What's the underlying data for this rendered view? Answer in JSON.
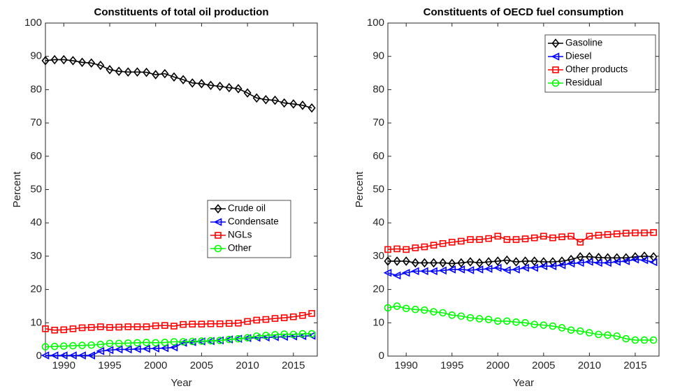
{
  "chart_data": [
    {
      "type": "line",
      "title": "Constituents of total oil production",
      "xlabel": "Year",
      "ylabel": "Percent",
      "x": [
        1988,
        1989,
        1990,
        1991,
        1992,
        1993,
        1994,
        1995,
        1996,
        1997,
        1998,
        1999,
        2000,
        2001,
        2002,
        2003,
        2004,
        2005,
        2006,
        2007,
        2008,
        2009,
        2010,
        2011,
        2012,
        2013,
        2014,
        2015,
        2016,
        2017
      ],
      "xlim": [
        1988,
        2017.6
      ],
      "xticks": [
        1990,
        1995,
        2000,
        2005,
        2010,
        2015
      ],
      "ylim": [
        0,
        100
      ],
      "yticks": [
        0,
        10,
        20,
        30,
        40,
        50,
        60,
        70,
        80,
        90,
        100
      ],
      "legend": "east",
      "series": [
        {
          "name": "Crude oil",
          "color": "#000000",
          "marker": "diamond",
          "values": [
            88.7,
            89,
            89,
            88.7,
            88.2,
            88,
            87.3,
            86,
            85.5,
            85.3,
            85.3,
            85.2,
            84.5,
            84.8,
            83.8,
            83,
            82,
            81.8,
            81.3,
            81,
            80.6,
            80.3,
            79,
            77.5,
            77,
            76.8,
            76,
            75.7,
            75.3,
            74.5
          ]
        },
        {
          "name": "Condensate",
          "color": "#0000ff",
          "marker": "triangle-left",
          "values": [
            0.2,
            0.2,
            0.2,
            0.2,
            0.2,
            0.2,
            1.5,
            1.8,
            2,
            2,
            2.1,
            2.2,
            2.3,
            2.4,
            2.6,
            4,
            4.2,
            4.4,
            4.5,
            4.7,
            5,
            5.2,
            5.4,
            5.5,
            5.6,
            5.7,
            5.8,
            5.9,
            6,
            6.1
          ]
        },
        {
          "name": "NGLs",
          "color": "#ff0000",
          "marker": "square",
          "values": [
            8.2,
            7.8,
            7.9,
            8.2,
            8.5,
            8.6,
            8.8,
            8.6,
            8.7,
            8.8,
            8.8,
            8.8,
            9.1,
            9.2,
            9,
            9.5,
            9.6,
            9.6,
            9.7,
            9.7,
            9.8,
            9.9,
            10.4,
            10.8,
            11,
            11.3,
            11.5,
            11.8,
            12.2,
            12.8
          ]
        },
        {
          "name": "Other",
          "color": "#00ff00",
          "marker": "circle",
          "values": [
            2.8,
            2.9,
            3,
            3.1,
            3.2,
            3.3,
            3.5,
            3.8,
            3.8,
            3.9,
            4,
            4.1,
            4,
            4.1,
            4.3,
            4.3,
            4.4,
            4.5,
            4.6,
            4.7,
            5,
            5.2,
            5.5,
            6,
            6.2,
            6.4,
            6.6,
            6.5,
            6.7,
            6.7
          ]
        }
      ]
    },
    {
      "type": "line",
      "title": "Constituents of OECD fuel consumption",
      "xlabel": "Year",
      "ylabel": "Percent",
      "x": [
        1988,
        1989,
        1990,
        1991,
        1992,
        1993,
        1994,
        1995,
        1996,
        1997,
        1998,
        1999,
        2000,
        2001,
        2002,
        2003,
        2004,
        2005,
        2006,
        2007,
        2008,
        2009,
        2010,
        2011,
        2012,
        2013,
        2014,
        2015,
        2016,
        2017
      ],
      "xlim": [
        1988,
        2017.6
      ],
      "xticks": [
        1990,
        1995,
        2000,
        2005,
        2010,
        2015
      ],
      "ylim": [
        0,
        100
      ],
      "yticks": [
        0,
        10,
        20,
        30,
        40,
        50,
        60,
        70,
        80,
        90,
        100
      ],
      "legend": "northeast",
      "series": [
        {
          "name": "Gasoline",
          "color": "#000000",
          "marker": "diamond",
          "values": [
            28.5,
            28.5,
            28.5,
            28,
            28,
            28,
            28,
            27.8,
            28,
            28.3,
            28,
            28.3,
            28.5,
            28.8,
            28.3,
            28.5,
            28.5,
            28.3,
            28.3,
            28.5,
            29,
            29.8,
            29.8,
            29.6,
            29.5,
            29.5,
            29.5,
            29.8,
            30,
            29.8
          ]
        },
        {
          "name": "Diesel",
          "color": "#0000ff",
          "marker": "triangle-left",
          "values": [
            25,
            24.2,
            25,
            25.5,
            25.5,
            25.5,
            25.7,
            26,
            26,
            25.8,
            26,
            26.2,
            26.5,
            25.8,
            26,
            26.5,
            26.5,
            27,
            27,
            27.3,
            27.8,
            28,
            28.3,
            28,
            28,
            28.3,
            28.5,
            29,
            28.8,
            28.2
          ]
        },
        {
          "name": "Other products",
          "color": "#ff0000",
          "marker": "square",
          "values": [
            32,
            32.2,
            32,
            32.5,
            32.8,
            33.3,
            33.8,
            34.2,
            34.5,
            35,
            35,
            35.3,
            36,
            35,
            35,
            35.2,
            35.5,
            36,
            35.5,
            35.8,
            36,
            34.2,
            36,
            36.3,
            36.5,
            36.7,
            36.9,
            37,
            37,
            37.1
          ]
        },
        {
          "name": "Residual",
          "color": "#00ff00",
          "marker": "circle",
          "values": [
            14.5,
            15,
            14.3,
            14,
            13.8,
            13.3,
            13,
            12.3,
            12,
            11.5,
            11.2,
            11,
            10.5,
            10.5,
            10.2,
            10,
            9.5,
            9.3,
            9,
            8.5,
            7.8,
            7.5,
            7,
            6.5,
            6.3,
            6,
            5.2,
            4.8,
            4.8,
            4.8
          ]
        }
      ]
    }
  ]
}
